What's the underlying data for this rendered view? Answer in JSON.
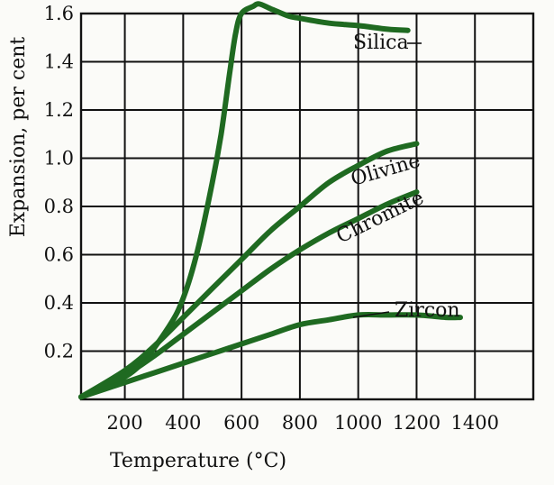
{
  "chart_data": {
    "type": "line",
    "title": "",
    "xlabel": "Temperature (°C)",
    "ylabel": "Expansion, per cent",
    "xlim": [
      50,
      1600
    ],
    "ylim": [
      0,
      1.6
    ],
    "grid": true,
    "x_ticks": [
      200,
      400,
      600,
      800,
      1000,
      1200,
      1400
    ],
    "y_ticks": [
      0.2,
      0.4,
      0.6,
      0.8,
      1.0,
      1.2,
      1.4,
      1.6
    ],
    "line_color": "#1f6a21",
    "series": [
      {
        "name": "Silica",
        "points": [
          [
            50,
            0.01
          ],
          [
            150,
            0.06
          ],
          [
            250,
            0.14
          ],
          [
            350,
            0.3
          ],
          [
            400,
            0.42
          ],
          [
            450,
            0.62
          ],
          [
            500,
            0.9
          ],
          [
            530,
            1.1
          ],
          [
            560,
            1.36
          ],
          [
            580,
            1.52
          ],
          [
            600,
            1.6
          ],
          [
            640,
            1.63
          ],
          [
            660,
            1.64
          ],
          [
            700,
            1.62
          ],
          [
            760,
            1.59
          ],
          [
            800,
            1.58
          ],
          [
            900,
            1.56
          ],
          [
            1000,
            1.55
          ],
          [
            1100,
            1.535
          ],
          [
            1170,
            1.53
          ]
        ]
      },
      {
        "name": "Olivine",
        "points": [
          [
            50,
            0.01
          ],
          [
            200,
            0.12
          ],
          [
            300,
            0.22
          ],
          [
            400,
            0.34
          ],
          [
            500,
            0.46
          ],
          [
            600,
            0.58
          ],
          [
            700,
            0.7
          ],
          [
            800,
            0.8
          ],
          [
            900,
            0.9
          ],
          [
            1000,
            0.97
          ],
          [
            1100,
            1.03
          ],
          [
            1200,
            1.06
          ]
        ]
      },
      {
        "name": "Chromite",
        "points": [
          [
            50,
            0.01
          ],
          [
            200,
            0.1
          ],
          [
            300,
            0.18
          ],
          [
            400,
            0.27
          ],
          [
            500,
            0.36
          ],
          [
            600,
            0.45
          ],
          [
            700,
            0.54
          ],
          [
            800,
            0.62
          ],
          [
            900,
            0.69
          ],
          [
            1000,
            0.75
          ],
          [
            1100,
            0.81
          ],
          [
            1200,
            0.86
          ]
        ]
      },
      {
        "name": "Zircon",
        "points": [
          [
            50,
            0.01
          ],
          [
            200,
            0.07
          ],
          [
            300,
            0.11
          ],
          [
            400,
            0.15
          ],
          [
            500,
            0.19
          ],
          [
            600,
            0.23
          ],
          [
            700,
            0.27
          ],
          [
            800,
            0.31
          ],
          [
            900,
            0.33
          ],
          [
            1000,
            0.35
          ],
          [
            1100,
            0.35
          ],
          [
            1200,
            0.35
          ],
          [
            1300,
            0.34
          ],
          [
            1350,
            0.34
          ]
        ]
      }
    ]
  }
}
